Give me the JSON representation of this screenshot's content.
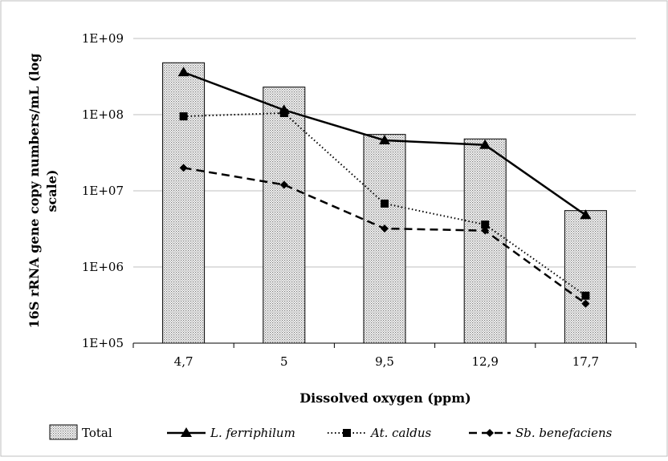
{
  "chart_data": {
    "type": "bar",
    "title": "",
    "xlabel": "Dissolved oxygen (ppm)",
    "ylabel": "16S rRNA gene copy numbers/mL (log scale)",
    "ylabel_lines": [
      "16S rRNA gene copy numbers/mL (log",
      "scale)"
    ],
    "yscale": "log",
    "ylim": [
      100000,
      1000000000
    ],
    "yticks": [
      100000,
      1000000,
      10000000,
      100000000,
      1000000000
    ],
    "ytick_labels": [
      "1E+05",
      "1E+06",
      "1E+07",
      "1E+08",
      "1E+09"
    ],
    "grid": "horizontal",
    "legend_position": "bottom",
    "categories": [
      "4,7",
      "5",
      "9,5",
      "12,9",
      "17,7"
    ],
    "series": [
      {
        "name": "Total",
        "kind": "bar",
        "pattern": "dotted-fill",
        "values": [
          480000000,
          230000000,
          55000000,
          48000000,
          5500000
        ]
      },
      {
        "name": "L. ferriphilum",
        "kind": "line",
        "linestyle": "solid",
        "marker": "triangle",
        "italic": true,
        "values": [
          360000000,
          115000000,
          46000000,
          40000000,
          4800000
        ]
      },
      {
        "name": "At. caldus",
        "kind": "line",
        "linestyle": "dotted",
        "marker": "square",
        "italic": true,
        "values": [
          95000000,
          105000000,
          6800000,
          3600000,
          420000
        ]
      },
      {
        "name": "Sb. benefaciens",
        "kind": "line",
        "linestyle": "dashed",
        "marker": "diamond",
        "italic": true,
        "values": [
          20000000,
          12000000,
          3200000,
          3000000,
          330000
        ]
      }
    ],
    "colors": {
      "line": "#000000",
      "bar_fill": "#dcdcdc",
      "grid": "#bfbfbf"
    }
  }
}
